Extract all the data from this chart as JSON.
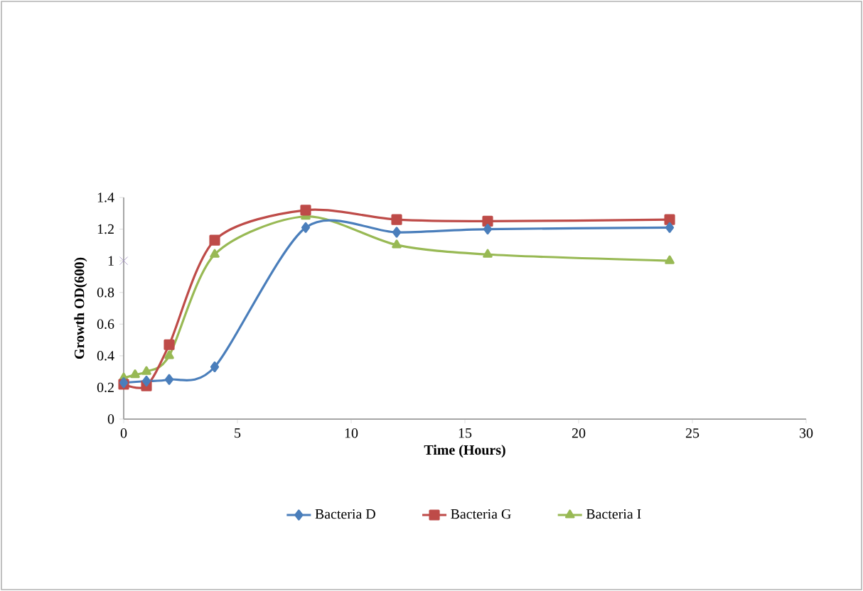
{
  "chart_data": {
    "type": "line",
    "xlabel": "Time (Hours)",
    "ylabel": "Growth OD(600)",
    "xlim": [
      0,
      30
    ],
    "xticks": [
      0,
      5,
      10,
      15,
      20,
      25,
      30
    ],
    "ylim": [
      0,
      1.4
    ],
    "yticks": [
      0,
      0.2,
      0.4,
      0.6,
      0.8,
      1,
      1.2,
      1.4
    ],
    "grid": false,
    "legend": "bottom",
    "series": [
      {
        "name": "Bacteria D",
        "color": "#4a7ebb",
        "marker": "diamond",
        "x": [
          0,
          1,
          2,
          4,
          8,
          12,
          16,
          24
        ],
        "values": [
          0.23,
          0.24,
          0.25,
          0.33,
          1.21,
          1.18,
          1.2,
          1.21
        ]
      },
      {
        "name": "Bacteria G",
        "color": "#be4b48",
        "marker": "square",
        "x": [
          0,
          1,
          2,
          4,
          8,
          12,
          16,
          24
        ],
        "values": [
          0.22,
          0.21,
          0.47,
          1.13,
          1.32,
          1.26,
          1.25,
          1.26
        ]
      },
      {
        "name": "Bacteria I",
        "color": "#98b954",
        "marker": "triangle",
        "x": [
          0,
          0.5,
          1,
          2,
          4,
          8,
          12,
          16,
          24
        ],
        "values": [
          0.26,
          0.28,
          0.3,
          0.4,
          1.04,
          1.28,
          1.1,
          1.04,
          1.0
        ]
      },
      {
        "type": "scatter",
        "color": "#9d8bbf",
        "marker": "cross",
        "x": [
          0
        ],
        "values": [
          1
        ]
      }
    ]
  }
}
